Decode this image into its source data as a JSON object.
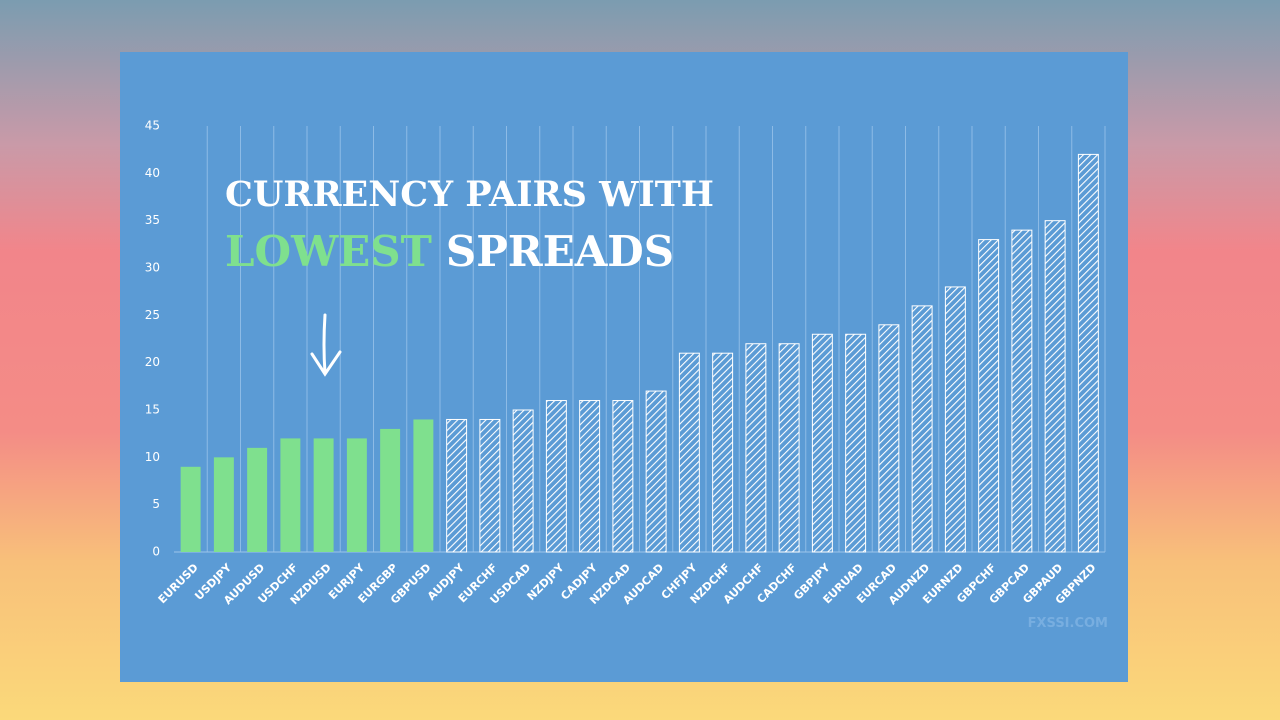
{
  "chart_data": {
    "type": "bar",
    "title": {
      "line1": "CURRENCY PAIRS WITH",
      "highlight": "LOWEST",
      "rest": "SPREADS"
    },
    "watermark": "FXSSI.COM",
    "categories": [
      "EURUSD",
      "USDJPY",
      "AUDUSD",
      "USDCHF",
      "NZDUSD",
      "EURJPY",
      "EURGBP",
      "GBPUSD",
      "AUDJPY",
      "EURCHF",
      "USDCAD",
      "NZDJPY",
      "CADJPY",
      "NZDCAD",
      "AUDCAD",
      "CHFJPY",
      "NZDCHF",
      "AUDCHF",
      "CADCHF",
      "GBPJPY",
      "EURUAD",
      "EURCAD",
      "AUDNZD",
      "EURNZD",
      "GBPCHF",
      "GBPCAD",
      "GBPAUD",
      "GBPNZD"
    ],
    "values": [
      9,
      10,
      11,
      12,
      12,
      12,
      13,
      14,
      14,
      14,
      15,
      16,
      16,
      16,
      17,
      21,
      21,
      22,
      22,
      23,
      23,
      24,
      26,
      28,
      33,
      34,
      35,
      42
    ],
    "colors": [
      "#7fe08e",
      "#7fe08e",
      "#7fe08e",
      "#7fe08e",
      "#7fe08e",
      "#7fe08e",
      "#7fe08e",
      "#7fe08e",
      "#ffffff",
      "#ffffff",
      "#ffffff",
      "#ffffff",
      "#ffffff",
      "#ffffff",
      "#ffffff",
      "#ffffff",
      "#ffffff",
      "#ffffff",
      "#ffffff",
      "#ffffff",
      "#ffffff",
      "#ffffff",
      "#ffffff",
      "#ffffff",
      "#ffffff",
      "#ffffff",
      "#ffffff",
      "#ffffff"
    ],
    "patterns": [
      "solid",
      "solid",
      "solid",
      "solid",
      "solid",
      "solid",
      "solid",
      "solid",
      "hatched",
      "hatched",
      "hatched",
      "hatched",
      "hatched",
      "hatched",
      "hatched",
      "hatched",
      "hatched",
      "hatched",
      "hatched",
      "hatched",
      "hatched",
      "hatched",
      "hatched",
      "hatched",
      "hatched",
      "hatched",
      "hatched",
      "hatched"
    ],
    "ylim": [
      0,
      45
    ],
    "yticks": [
      0,
      5,
      10,
      15,
      20,
      25,
      30,
      35,
      40,
      45
    ],
    "grid": "vertical"
  }
}
